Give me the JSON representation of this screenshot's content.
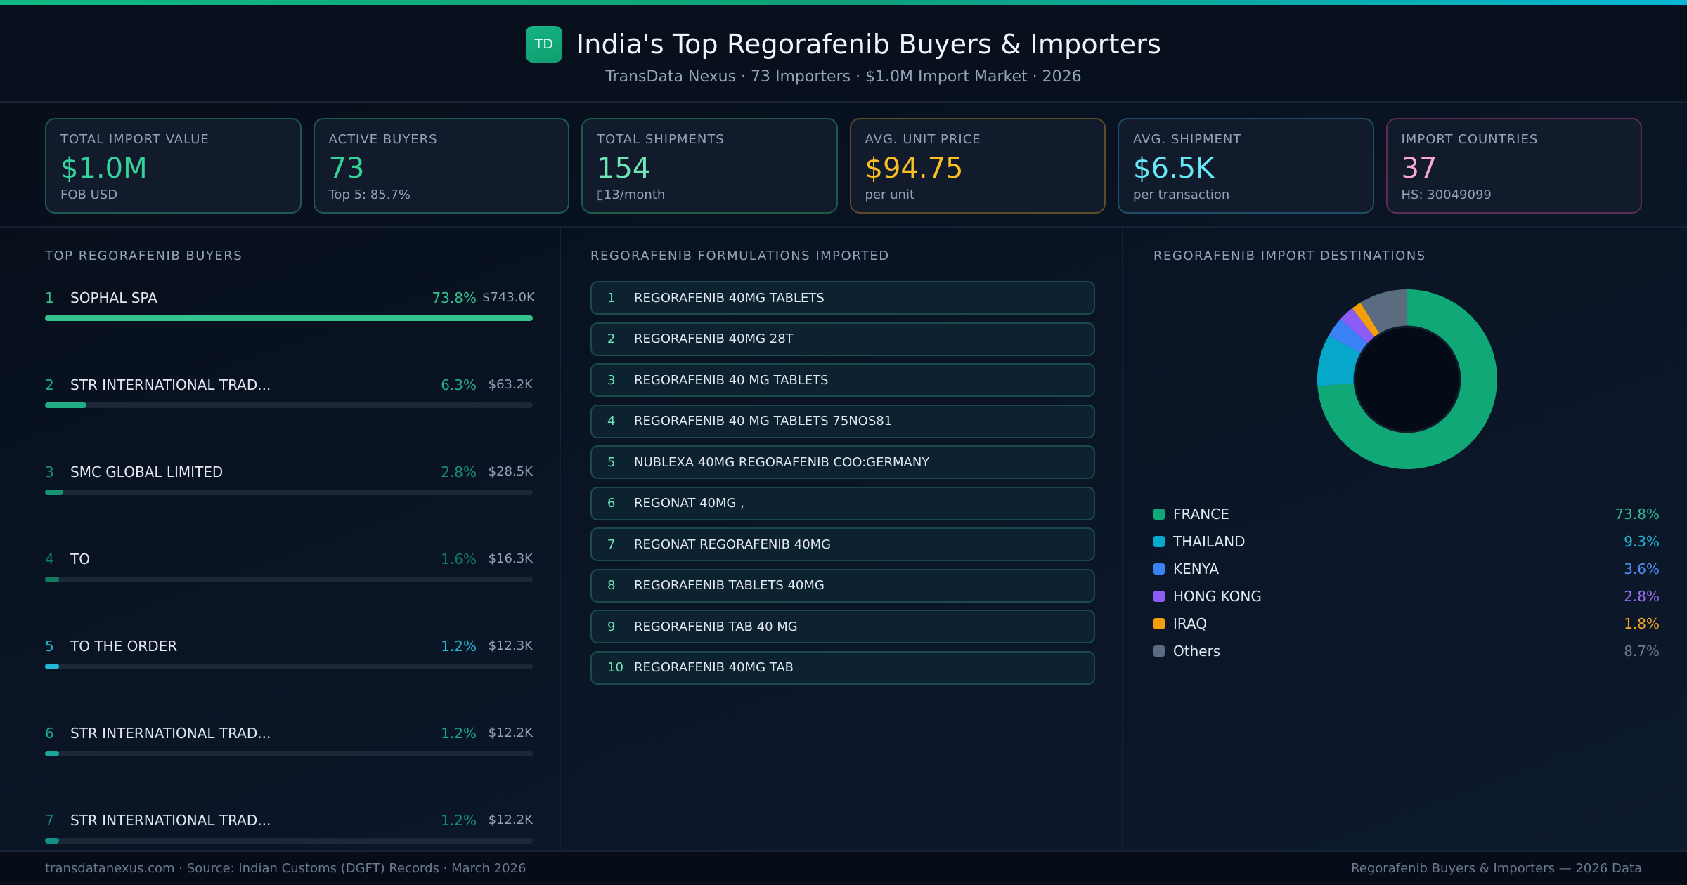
{
  "header": {
    "logo_text": "TD",
    "title": "India's Top Regorafenib Buyers & Importers",
    "subtitle": "TransData Nexus · 73 Importers · $1.0M Import Market · 2026"
  },
  "kpis": [
    {
      "label": "TOTAL IMPORT VALUE",
      "value": "$1.0M",
      "sub": "FOB USD",
      "color": "#34d399",
      "border": "#1e5a52"
    },
    {
      "label": "ACTIVE BUYERS",
      "value": "73",
      "sub": "Top 5: 85.7%",
      "color": "#34d399",
      "border": "#1e5a52"
    },
    {
      "label": "TOTAL SHIPMENTS",
      "value": "154",
      "sub": "▯13/month",
      "color": "#6ee7b7",
      "border": "#1d5a48"
    },
    {
      "label": "AVG. UNIT PRICE",
      "value": "$94.75",
      "sub": "per unit",
      "color": "#fbbf24",
      "border": "#5c4b26"
    },
    {
      "label": "AVG. SHIPMENT",
      "value": "$6.5K",
      "sub": "per transaction",
      "color": "#67e8f9",
      "border": "#1e4f66"
    },
    {
      "label": "IMPORT COUNTRIES",
      "value": "37",
      "sub": "HS: 30049099",
      "color": "#f9a8d4",
      "border": "#5a2e52"
    }
  ],
  "buyers": {
    "title": "TOP REGORAFENIB BUYERS",
    "items": [
      {
        "rank": "1",
        "name": "SOPHAL SPA",
        "pct": "73.8%",
        "value": "$743.0K",
        "bar": 100,
        "color": "#34c38f"
      },
      {
        "rank": "2",
        "name": "STR INTERNATIONAL TRAD...",
        "pct": "6.3%",
        "value": "$63.2K",
        "bar": 8.5,
        "color": "#1fae84"
      },
      {
        "rank": "3",
        "name": "SMC GLOBAL LIMITED",
        "pct": "2.8%",
        "value": "$28.5K",
        "bar": 3.8,
        "color": "#14936e"
      },
      {
        "rank": "4",
        "name": "TO",
        "pct": "1.6%",
        "value": "$16.3K",
        "bar": 2.9,
        "color": "#127a5d"
      },
      {
        "rank": "5",
        "name": "TO THE ORDER",
        "pct": "1.2%",
        "value": "$12.3K",
        "bar": 2.9,
        "color": "#22b8d8"
      },
      {
        "rank": "6",
        "name": "STR INTERNATIONAL TRAD...",
        "pct": "1.2%",
        "value": "$12.2K",
        "bar": 2.9,
        "color": "#17a79a"
      },
      {
        "rank": "7",
        "name": "STR INTERNATIONAL TRAD...",
        "pct": "1.2%",
        "value": "$12.2K",
        "bar": 2.9,
        "color": "#149186"
      }
    ]
  },
  "formulations": {
    "title": "REGORAFENIB FORMULATIONS IMPORTED",
    "items": [
      {
        "rank": "1",
        "name": "REGORAFENIB 40MG TABLETS"
      },
      {
        "rank": "2",
        "name": "REGORAFENIB 40MG 28T"
      },
      {
        "rank": "3",
        "name": "REGORAFENIB 40 MG TABLETS"
      },
      {
        "rank": "4",
        "name": "REGORAFENIB 40 MG TABLETS 75NOS81"
      },
      {
        "rank": "5",
        "name": "NUBLEXA 40MG REGORAFENIB COO:GERMANY"
      },
      {
        "rank": "6",
        "name": "REGONAT 40MG ,"
      },
      {
        "rank": "7",
        "name": "REGONAT REGORAFENIB 40MG"
      },
      {
        "rank": "8",
        "name": "REGORAFENIB TABLETS 40MG"
      },
      {
        "rank": "9",
        "name": "REGORAFENIB TAB 40 MG"
      },
      {
        "rank": "10",
        "name": "REGORAFENIB 40MG TAB"
      }
    ]
  },
  "destinations": {
    "title": "REGORAFENIB IMPORT DESTINATIONS",
    "items": [
      {
        "name": "FRANCE",
        "pct": "73.8%",
        "color": "#10a877",
        "text_color": "#34b58e"
      },
      {
        "name": "THAILAND",
        "pct": "9.3%",
        "color": "#06a9c9",
        "text_color": "#22b8d8"
      },
      {
        "name": "KENYA",
        "pct": "3.6%",
        "color": "#3b82f6",
        "text_color": "#4f8ff0"
      },
      {
        "name": "HONG KONG",
        "pct": "2.8%",
        "color": "#8b5cf6",
        "text_color": "#9b6ef3"
      },
      {
        "name": "IRAQ",
        "pct": "1.8%",
        "color": "#f59e0b",
        "text_color": "#f5a524"
      },
      {
        "name": "Others",
        "pct": "8.7%",
        "color": "#5b6b80",
        "text_color": "#6b7a90"
      }
    ]
  },
  "chart_data": {
    "type": "pie",
    "title": "REGORAFENIB IMPORT DESTINATIONS",
    "categories": [
      "FRANCE",
      "THAILAND",
      "KENYA",
      "HONG KONG",
      "IRAQ",
      "Others"
    ],
    "values": [
      73.8,
      9.3,
      3.6,
      2.8,
      1.8,
      8.7
    ],
    "colors": [
      "#10a877",
      "#06a9c9",
      "#3b82f6",
      "#8b5cf6",
      "#f59e0b",
      "#5b6b80"
    ],
    "donut": true,
    "legend_position": "below"
  },
  "footer": {
    "left": "transdatanexus.com · Source: Indian Customs (DGFT) Records · March 2026",
    "right": "Regorafenib Buyers & Importers — 2026 Data"
  }
}
